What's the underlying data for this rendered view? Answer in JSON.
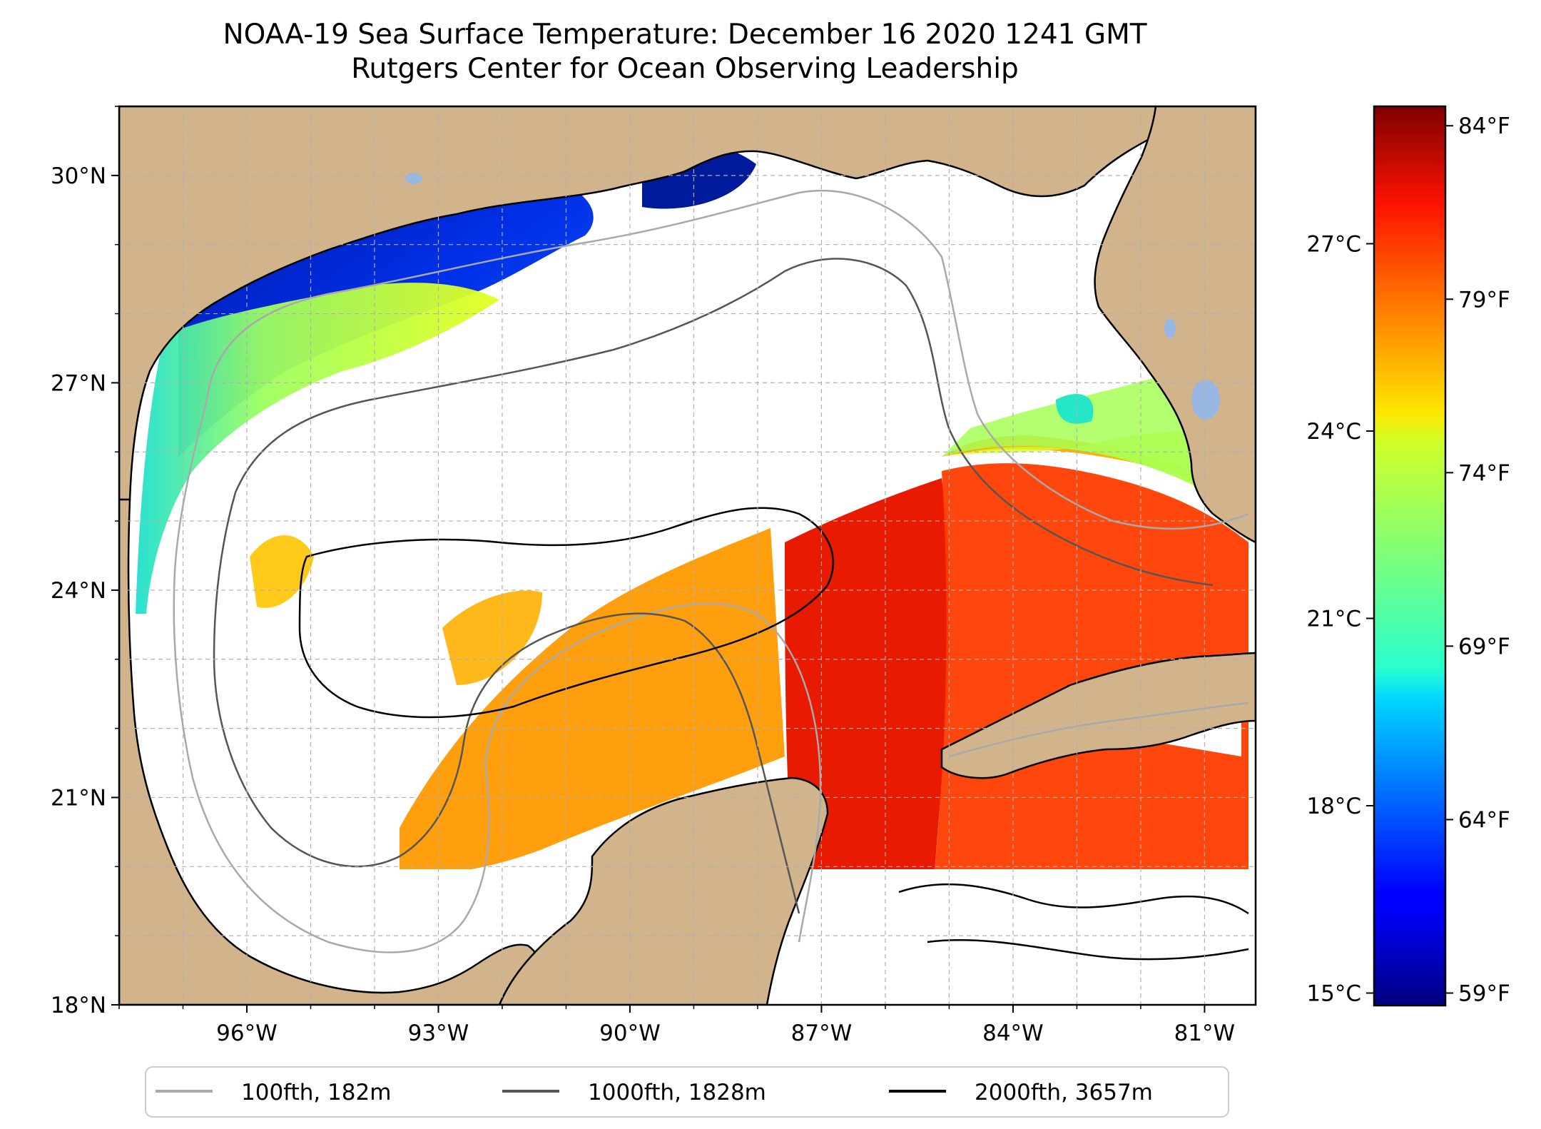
{
  "title": {
    "line1": "NOAA-19 Sea Surface Temperature: December 16 2020 1241 GMT",
    "line2": "Rutgers Center for Ocean Observing Leadership"
  },
  "map": {
    "lon_range": [
      -98.0,
      -80.2
    ],
    "lat_range": [
      18.0,
      31.0
    ],
    "x_ticks": [
      {
        "lon": -96,
        "label": "96°W"
      },
      {
        "lon": -93,
        "label": "93°W"
      },
      {
        "lon": -90,
        "label": "90°W"
      },
      {
        "lon": -87,
        "label": "87°W"
      },
      {
        "lon": -84,
        "label": "84°W"
      },
      {
        "lon": -81,
        "label": "81°W"
      }
    ],
    "y_ticks": [
      {
        "lat": 18,
        "label": "18°N"
      },
      {
        "lat": 21,
        "label": "21°N"
      },
      {
        "lat": 24,
        "label": "24°N"
      },
      {
        "lat": 27,
        "label": "27°N"
      },
      {
        "lat": 30,
        "label": "30°N"
      }
    ],
    "colors": {
      "land": "#D2B48C",
      "lakes": "#97B6E1",
      "grid": "#B0B0B0",
      "ocean_nodata": "#FFFFFF"
    }
  },
  "colorbar": {
    "celsius_range": [
      14.8,
      29.2
    ],
    "celsius_ticks": [
      {
        "value": 15,
        "label": "15°C"
      },
      {
        "value": 18,
        "label": "18°C"
      },
      {
        "value": 21,
        "label": "21°C"
      },
      {
        "value": 24,
        "label": "24°C"
      },
      {
        "value": 27,
        "label": "27°C"
      }
    ],
    "fahrenheit_ticks": [
      {
        "value": 59,
        "label": "59°F"
      },
      {
        "value": 64,
        "label": "64°F"
      },
      {
        "value": 69,
        "label": "69°F"
      },
      {
        "value": 74,
        "label": "74°F"
      },
      {
        "value": 79,
        "label": "79°F"
      },
      {
        "value": 84,
        "label": "84°F"
      }
    ],
    "colormap": "jet"
  },
  "legend": {
    "items": [
      {
        "label": "100fth, 182m",
        "color": "#A9A9A9"
      },
      {
        "label": "1000fth, 1828m",
        "color": "#555555"
      },
      {
        "label": "2000fth, 3657m",
        "color": "#000000"
      }
    ]
  }
}
